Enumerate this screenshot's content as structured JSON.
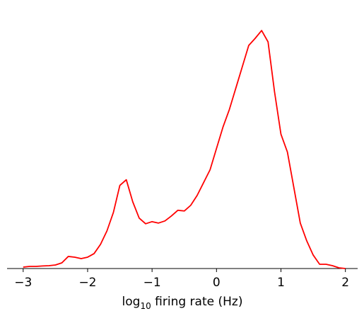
{
  "chart_data": {
    "type": "line",
    "xlabel_parts": [
      "log",
      "10",
      " firing rate (Hz)"
    ],
    "xlim": [
      -3.25,
      2.19
    ],
    "ylim": [
      0,
      0.92
    ],
    "xticks": [
      {
        "value": -3,
        "label": "−3"
      },
      {
        "value": -2,
        "label": "−2"
      },
      {
        "value": -1,
        "label": "−1"
      },
      0,
      1,
      2
    ],
    "series": [
      {
        "color": "#ff0000",
        "x": [
          -3,
          -2.9,
          -2.8,
          -2.7,
          -2.6,
          -2.5,
          -2.4,
          -2.3,
          -2.2,
          -2.1,
          -2,
          -1.9,
          -1.8,
          -1.7,
          -1.6,
          -1.5,
          -1.4,
          -1.3,
          -1.2,
          -1.1,
          -1,
          -0.9,
          -0.8,
          -0.7,
          -0.6,
          -0.5,
          -0.4,
          -0.3,
          -0.2,
          -0.1,
          0,
          0.1,
          0.2,
          0.3,
          0.4,
          0.5,
          0.6,
          0.7,
          0.8,
          0.9,
          1,
          1.1,
          1.2,
          1.3,
          1.4,
          1.5,
          1.6,
          1.7,
          1.8,
          1.9,
          2
        ],
        "values": [
          0.005,
          0.0075,
          0.0075,
          0.009,
          0.01,
          0.0125,
          0.02,
          0.0425,
          0.04,
          0.035,
          0.04,
          0.0525,
          0.085,
          0.1325,
          0.1975,
          0.2925,
          0.3125,
          0.235,
          0.1775,
          0.1575,
          0.165,
          0.16,
          0.1675,
          0.185,
          0.205,
          0.2025,
          0.2225,
          0.2575,
          0.3025,
          0.3475,
          0.4225,
          0.4975,
          0.56,
          0.635,
          0.71,
          0.785,
          0.81,
          0.8375,
          0.7975,
          0.6225,
          0.4725,
          0.41,
          0.285,
          0.16,
          0.0975,
          0.0475,
          0.015,
          0.015,
          0.01,
          0.0025,
          0
        ]
      }
    ]
  }
}
